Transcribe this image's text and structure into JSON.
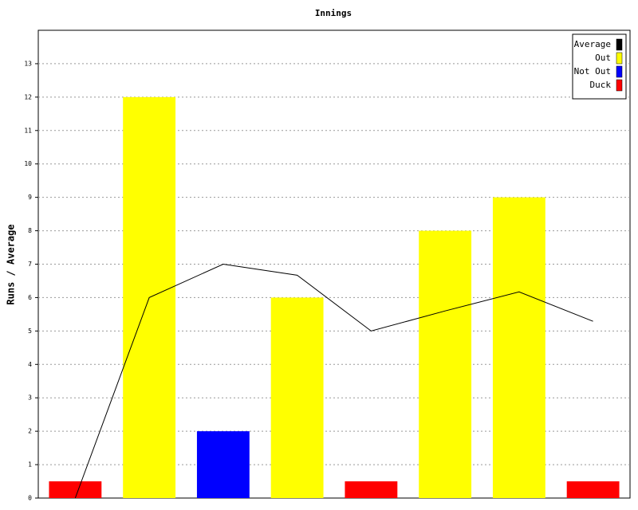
{
  "chart_data": {
    "type": "bar",
    "title": "Innings",
    "y_label": "Runs / Average",
    "categories": [
      null,
      null,
      null,
      null,
      null,
      null,
      null,
      null
    ],
    "series": [
      {
        "name": "Average",
        "color": "#000000",
        "type": "line",
        "values": [
          0,
          6,
          7,
          6.67,
          5,
          5.6,
          6.17,
          5.29
        ]
      },
      {
        "name": "Out",
        "color": "#ffff00",
        "type": "bar",
        "values": [
          null,
          12,
          null,
          6,
          null,
          8,
          9,
          null
        ]
      },
      {
        "name": "Not Out",
        "color": "#0000ff",
        "type": "bar",
        "values": [
          null,
          null,
          2,
          null,
          null,
          null,
          null,
          null
        ]
      },
      {
        "name": "Duck",
        "color": "#ff0000",
        "type": "bar",
        "values": [
          0.5,
          null,
          null,
          null,
          0.5,
          null,
          null,
          0.5
        ]
      }
    ],
    "ylim": [
      0,
      14
    ],
    "yticks": [
      0,
      1,
      2,
      3,
      4,
      5,
      6,
      7,
      8,
      9,
      10,
      11,
      12,
      13
    ],
    "grid": true,
    "legend": "top-right"
  }
}
